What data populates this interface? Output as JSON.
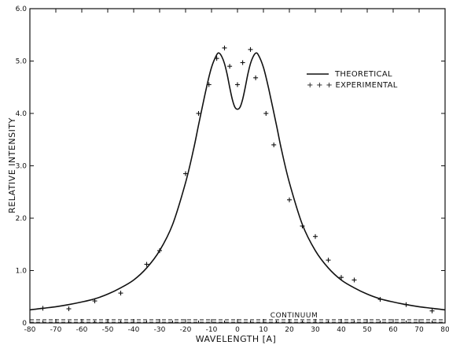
{
  "chart_data": {
    "type": "line",
    "title": "",
    "xlabel": "WAVELENGTH  [A]",
    "ylabel": "RELATIVE  INTENSITY",
    "xlim": [
      -80,
      80
    ],
    "ylim": [
      0,
      6.0
    ],
    "x_ticks": [
      -80,
      -70,
      -60,
      -50,
      -40,
      -30,
      -20,
      -10,
      0,
      10,
      20,
      30,
      40,
      50,
      60,
      70,
      80
    ],
    "x_tick_labels": [
      "-80",
      "-70",
      "-60",
      "-50",
      "-40",
      "-30",
      "-20",
      "-10",
      "0",
      "10",
      "20",
      "30",
      "40",
      "50",
      "60",
      "70",
      "80"
    ],
    "y_ticks": [
      0,
      1.0,
      2.0,
      3.0,
      4.0,
      5.0,
      6.0
    ],
    "y_tick_labels": [
      "0",
      "1.0",
      "2.0",
      "3.0",
      "4.0",
      "5.0",
      "6.0"
    ],
    "grid": false,
    "legend_position": "top-right",
    "series": [
      {
        "name": "THEORETICAL",
        "style": "solid-line",
        "x": [
          -80,
          -75,
          -70,
          -65,
          -60,
          -55,
          -50,
          -45,
          -40,
          -35,
          -30,
          -25,
          -20,
          -17,
          -15,
          -12,
          -10,
          -8,
          -7,
          -6,
          -5,
          -4,
          -3,
          -2,
          -1,
          0,
          1,
          2,
          3,
          4,
          5,
          6,
          7,
          8,
          10,
          12,
          15,
          17,
          20,
          25,
          30,
          35,
          40,
          45,
          50,
          55,
          60,
          65,
          70,
          75,
          80
        ],
        "y": [
          0.25,
          0.28,
          0.31,
          0.35,
          0.4,
          0.46,
          0.55,
          0.67,
          0.82,
          1.05,
          1.38,
          1.88,
          2.68,
          3.3,
          3.78,
          4.48,
          4.88,
          5.12,
          5.15,
          5.08,
          4.95,
          4.75,
          4.5,
          4.27,
          4.12,
          4.08,
          4.12,
          4.27,
          4.5,
          4.75,
          4.95,
          5.08,
          5.15,
          5.12,
          4.88,
          4.48,
          3.78,
          3.3,
          2.68,
          1.88,
          1.38,
          1.05,
          0.82,
          0.67,
          0.55,
          0.46,
          0.4,
          0.35,
          0.31,
          0.28,
          0.25
        ]
      },
      {
        "name": "EXPERIMENTAL",
        "style": "plus-markers",
        "x": [
          -75,
          -65,
          -55,
          -45,
          -35,
          -30,
          -20,
          -15,
          -11,
          -8,
          -5,
          -3,
          0,
          2,
          5,
          7,
          11,
          14,
          20,
          25,
          30,
          35,
          40,
          45,
          55,
          65,
          75
        ],
        "y": [
          0.28,
          0.27,
          0.42,
          0.57,
          1.12,
          1.38,
          2.85,
          4.0,
          4.55,
          5.05,
          5.25,
          4.9,
          4.55,
          4.97,
          5.22,
          4.68,
          4.0,
          3.4,
          2.35,
          1.85,
          1.65,
          1.2,
          0.87,
          0.82,
          0.45,
          0.35,
          0.23
        ]
      }
    ],
    "reference_lines": [
      {
        "name": "CONTINUUM",
        "y": 0.06,
        "style": "dashed"
      }
    ],
    "legend": {
      "theoretical_label": "THEORETICAL",
      "experimental_label": "+ + +  EXPERIMENTAL"
    },
    "annotations": {
      "continuum_label": "CONTINUUM"
    }
  }
}
